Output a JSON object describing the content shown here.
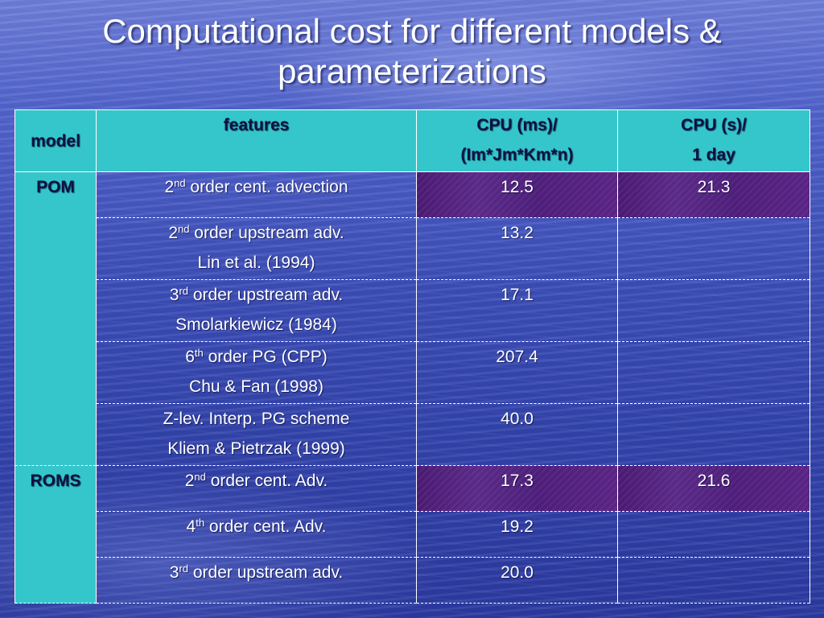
{
  "slide": {
    "title_line1": "Computational cost for different models &",
    "title_line2": "parameterizations"
  },
  "table": {
    "headers": {
      "model": "model",
      "features": "features",
      "cpu_ms_line1": "CPU (ms)/",
      "cpu_ms_line2": "(Im*Jm*Km*n)",
      "cpu_s_line1": "CPU (s)/",
      "cpu_s_line2": "1 day"
    },
    "models": {
      "pom": "POM",
      "roms": "ROMS"
    },
    "rows": [
      {
        "model": "POM",
        "num": "2",
        "sup": "nd",
        "feature": " order cent. advection",
        "feature2": "",
        "cpu_ms": "12.5",
        "cpu_s": "21.3",
        "highlight": true
      },
      {
        "model": "POM",
        "num": "2",
        "sup": "nd",
        "feature": " order upstream adv.",
        "feature2": "Lin et al. (1994)",
        "cpu_ms": "13.2",
        "cpu_s": ""
      },
      {
        "model": "POM",
        "num": "3",
        "sup": "rd",
        "feature": " order upstream adv.",
        "feature2": "Smolarkiewicz (1984)",
        "cpu_ms": "17.1",
        "cpu_s": ""
      },
      {
        "model": "POM",
        "num": "6",
        "sup": "th",
        "feature": " order PG (CPP)",
        "feature2": "Chu & Fan (1998)",
        "cpu_ms": "207.4",
        "cpu_s": ""
      },
      {
        "model": "POM",
        "num": "",
        "sup": "",
        "feature": "Z-lev. Interp. PG scheme",
        "feature2": "Kliem & Pietrzak (1999)",
        "cpu_ms": "40.0",
        "cpu_s": ""
      },
      {
        "model": "ROMS",
        "num": "2",
        "sup": "nd",
        "feature": " order cent. Adv.",
        "feature2": "",
        "cpu_ms": "17.3",
        "cpu_s": "21.6",
        "highlight": true
      },
      {
        "model": "ROMS",
        "num": "4",
        "sup": "th",
        "feature": " order cent. Adv.",
        "feature2": "",
        "cpu_ms": "19.2",
        "cpu_s": ""
      },
      {
        "model": "ROMS",
        "num": "3",
        "sup": "rd",
        "feature": " order upstream adv.",
        "feature2": "",
        "cpu_ms": "20.0",
        "cpu_s": ""
      }
    ]
  },
  "colors": {
    "header_bg": "#35c6cc",
    "highlight_bg": "#4d1e7a",
    "background": "#3d4fb8"
  }
}
